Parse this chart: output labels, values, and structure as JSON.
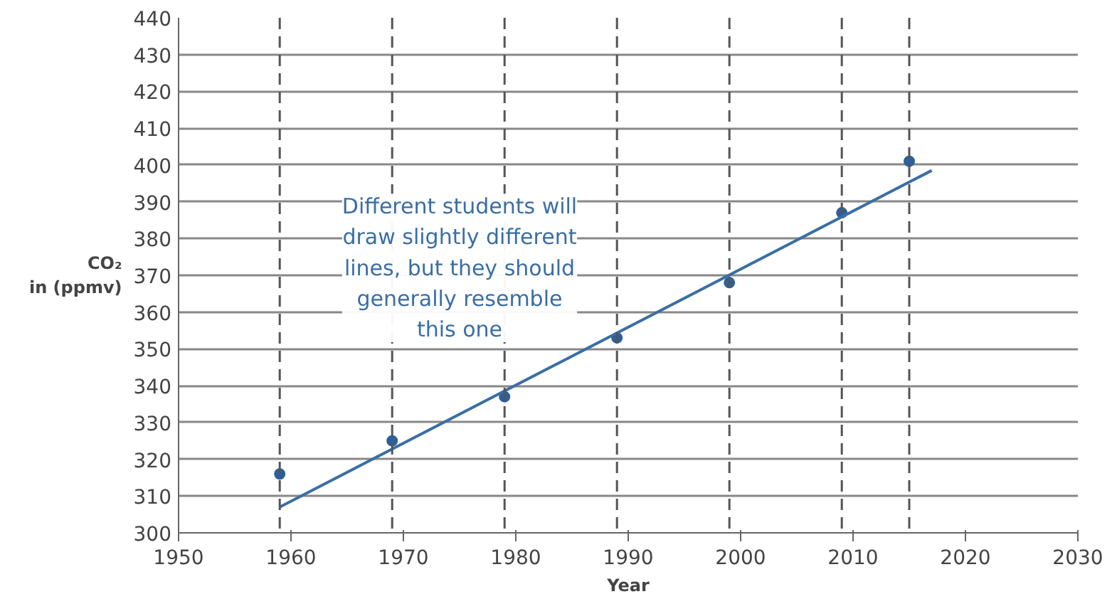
{
  "chart_data": {
    "type": "scatter",
    "xlabel": "Year",
    "ylabel": "CO₂\nin (ppmv)",
    "xlim": [
      1950,
      2030
    ],
    "ylim": [
      300,
      440
    ],
    "xticks": [
      1950,
      1960,
      1970,
      1980,
      1990,
      2000,
      2010,
      2020,
      2030
    ],
    "yticks": [
      300,
      310,
      320,
      330,
      340,
      350,
      360,
      370,
      380,
      390,
      400,
      410,
      420,
      430,
      440
    ],
    "grid": "y",
    "series": [
      {
        "marker": "circle",
        "color": "#2f5f98",
        "x": [
          1959,
          1969,
          1979,
          1989,
          1999,
          2009,
          2015
        ],
        "values": [
          316,
          325,
          337,
          353,
          368,
          387,
          401
        ]
      },
      {
        "type": "line",
        "marker": "none",
        "color": "#3a6ea5",
        "x": [
          1959,
          2017
        ],
        "values": [
          307,
          398.5
        ]
      }
    ],
    "ref_lines": [
      {
        "axis": "x",
        "value": 1959,
        "line_style": "dashed",
        "color": "#555555"
      },
      {
        "axis": "x",
        "value": 1969,
        "line_style": "dashed",
        "color": "#555555"
      },
      {
        "axis": "x",
        "value": 1979,
        "line_style": "dashed",
        "color": "#555555"
      },
      {
        "axis": "x",
        "value": 1989,
        "line_style": "dashed",
        "color": "#555555"
      },
      {
        "axis": "x",
        "value": 1999,
        "line_style": "dashed",
        "color": "#555555"
      },
      {
        "axis": "x",
        "value": 2009,
        "line_style": "dashed",
        "color": "#555555"
      },
      {
        "axis": "x",
        "value": 2015,
        "line_style": "dashed",
        "color": "#555555"
      }
    ],
    "annotations": [
      "Different students will\ndraw slightly different\nlines, but they should\ngenerally resemble\nthis one"
    ]
  }
}
